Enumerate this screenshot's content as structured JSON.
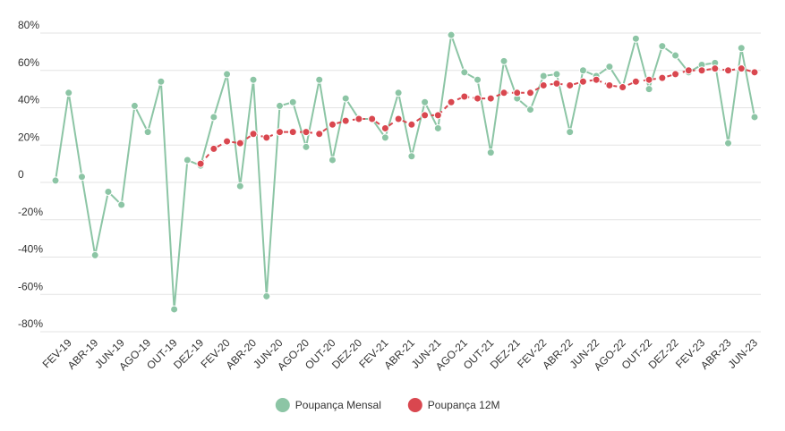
{
  "chart_data": {
    "type": "line",
    "categories": [
      null,
      "FEV-19",
      null,
      "ABR-19",
      null,
      "JUN-19",
      null,
      "AGO-19",
      null,
      "OUT-19",
      null,
      "DEZ-19",
      null,
      "FEV-20",
      null,
      "ABR-20",
      null,
      "JUN-20",
      null,
      "AGO-20",
      null,
      "OUT-20",
      null,
      "DEZ-20",
      null,
      "FEV-21",
      null,
      "ABR-21",
      null,
      "JUN-21",
      null,
      "AGO-21",
      null,
      "OUT-21",
      null,
      "DEZ-21",
      null,
      "FEV-22",
      null,
      "ABR-22",
      null,
      "JUN-22",
      null,
      "AGO-22",
      null,
      "OUT-22",
      null,
      "DEZ-22",
      null,
      "FEV-23",
      null,
      "ABR-23",
      null,
      "JUN-23"
    ],
    "series": [
      {
        "name": "Poupança Mensal",
        "color": "#8cc5a5",
        "dashed": false,
        "values": [
          1,
          48,
          3,
          -39,
          -5,
          -12,
          41,
          27,
          54,
          -68,
          12,
          9,
          35,
          58,
          -2,
          55,
          -61,
          41,
          43,
          19,
          55,
          12,
          45,
          34,
          34,
          24,
          48,
          14,
          43,
          29,
          79,
          59,
          55,
          16,
          65,
          45,
          39,
          57,
          58,
          27,
          60,
          57,
          62,
          51,
          77,
          50,
          73,
          68,
          59,
          63,
          64,
          21,
          72,
          35
        ]
      },
      {
        "name": "Poupança 12M",
        "color": "#d9474f",
        "dashed": true,
        "values": [
          null,
          null,
          null,
          null,
          null,
          null,
          null,
          null,
          null,
          null,
          null,
          10,
          18,
          22,
          21,
          26,
          24,
          27,
          27,
          27,
          26,
          31,
          33,
          34,
          34,
          29,
          34,
          31,
          36,
          36,
          43,
          46,
          45,
          45,
          48,
          48,
          48,
          52,
          53,
          52,
          54,
          55,
          52,
          51,
          54,
          55,
          56,
          58,
          60,
          60,
          61,
          60,
          61,
          59
        ]
      }
    ],
    "ylim": [
      -80,
      80
    ],
    "yticks": [
      {
        "value": -80,
        "label": "-80%"
      },
      {
        "value": -60,
        "label": "-60%"
      },
      {
        "value": -40,
        "label": "-40%"
      },
      {
        "value": -20,
        "label": "-20%"
      },
      0,
      {
        "value": 20,
        "label": "20%"
      },
      {
        "value": 40,
        "label": "40%"
      },
      {
        "value": 60,
        "label": "60%"
      },
      {
        "value": 80,
        "label": "80%"
      }
    ],
    "grid": true,
    "legend": "bottom"
  }
}
